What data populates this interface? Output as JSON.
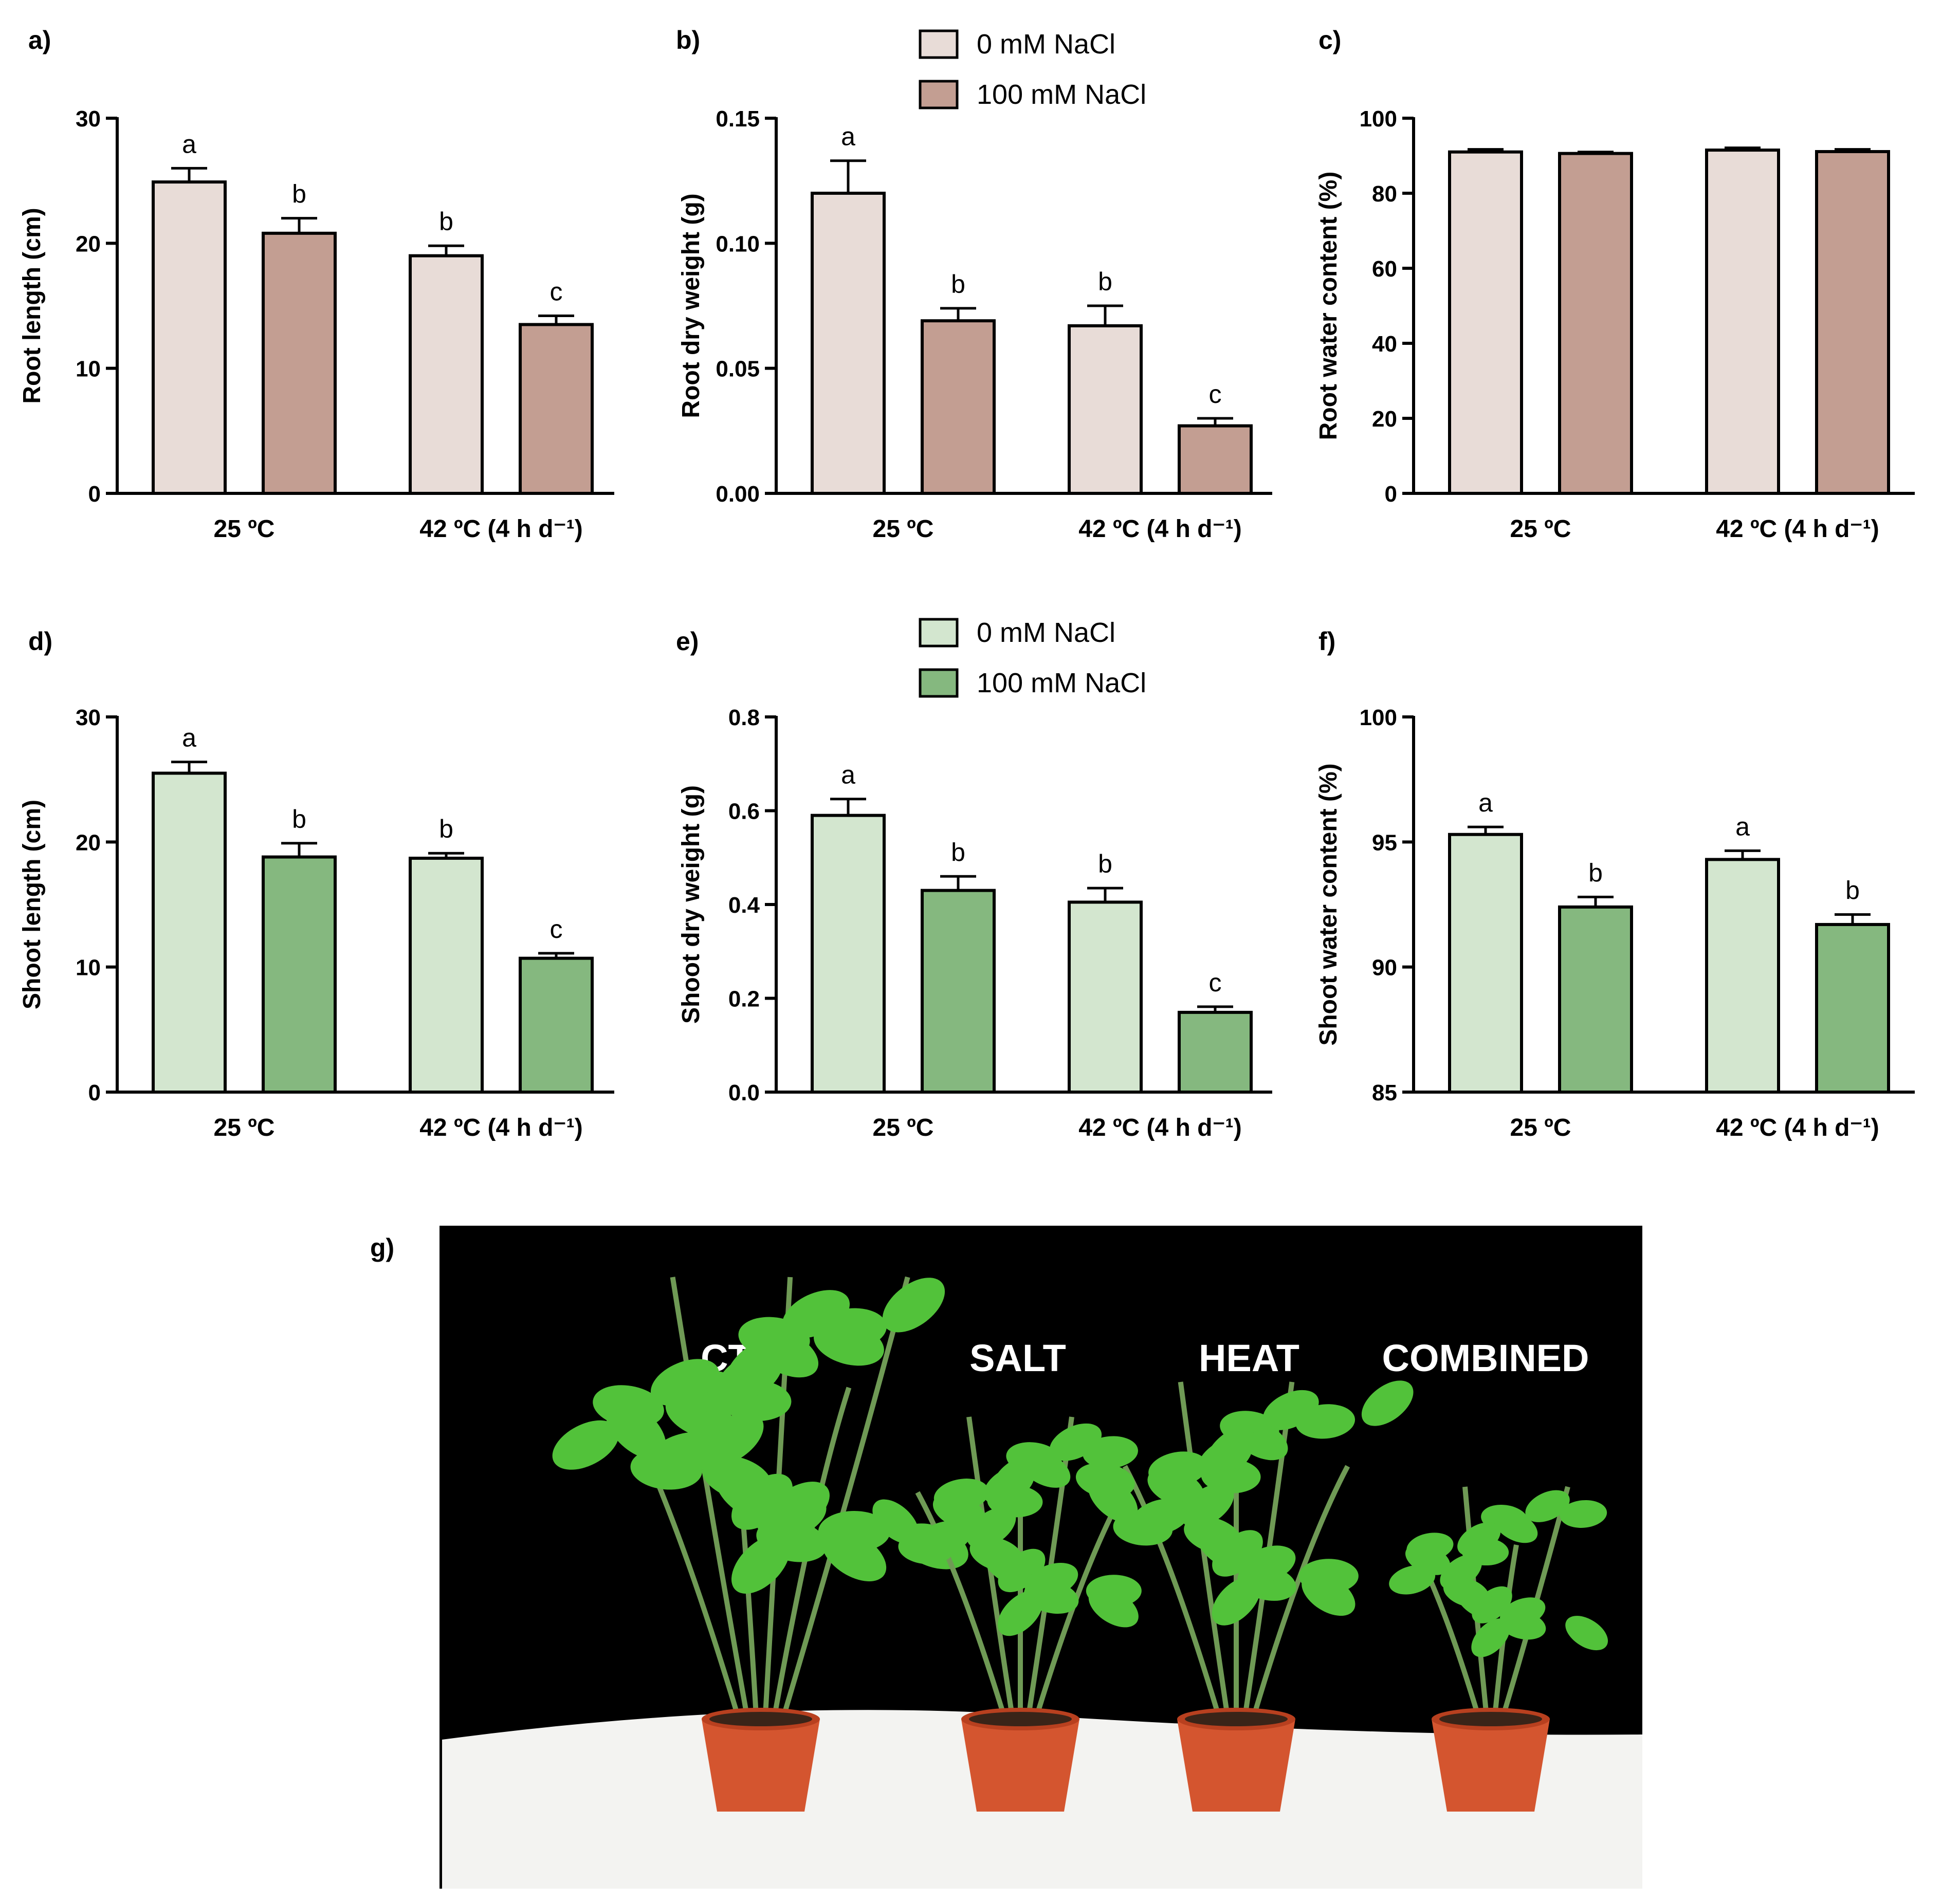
{
  "panel_labels": [
    "a)",
    "b)",
    "c)",
    "d)",
    "e)",
    "f)",
    "g)"
  ],
  "colors": {
    "root_control": "#e8dcd7",
    "root_salt": "#c39e92",
    "shoot_control": "#d3e6cf",
    "shoot_salt": "#85b87f",
    "axis": "#000000",
    "photo_background": "#000000",
    "photo_table": "#f3f3f1",
    "pot": "#d4552f",
    "leaf": "#52c23a",
    "stem": "#6f9a55"
  },
  "legends": [
    {
      "entries": [
        {
          "label": "0 mM NaCl",
          "color": "#e8dcd7"
        },
        {
          "label": "100 mM NaCl",
          "color": "#c39e92"
        }
      ]
    },
    {
      "entries": [
        {
          "label": "0 mM NaCl",
          "color": "#d3e6cf"
        },
        {
          "label": "100 mM NaCl",
          "color": "#85b87f"
        }
      ]
    }
  ],
  "chart_data": [
    {
      "panel": "a)",
      "type": "bar",
      "categories": [
        "25 ºC",
        "42 ºC (4 h d⁻¹)"
      ],
      "series": [
        {
          "name": "0 mM NaCl",
          "values": [
            24.9,
            19.0
          ],
          "errors": [
            1.1,
            0.8
          ],
          "letters": [
            "a",
            "b"
          ]
        },
        {
          "name": "100 mM NaCl",
          "values": [
            20.8,
            13.5
          ],
          "errors": [
            1.2,
            0.7
          ],
          "letters": [
            "b",
            "c"
          ]
        }
      ],
      "ylabel": "Root length (cm)",
      "ylim": [
        0,
        30
      ],
      "yticks": [
        "0",
        "10",
        "20",
        "30"
      ]
    },
    {
      "panel": "b)",
      "type": "bar",
      "categories": [
        "25 ºC",
        "42 ºC (4 h d⁻¹)"
      ],
      "series": [
        {
          "name": "0 mM NaCl",
          "values": [
            0.12,
            0.067
          ],
          "errors": [
            0.013,
            0.008
          ],
          "letters": [
            "a",
            "b"
          ]
        },
        {
          "name": "100 mM NaCl",
          "values": [
            0.069,
            0.027
          ],
          "errors": [
            0.005,
            0.003
          ],
          "letters": [
            "b",
            "c"
          ]
        }
      ],
      "ylabel": "Root dry weight (g)",
      "ylim": [
        0,
        0.15
      ],
      "yticks": [
        "0.00",
        "0.05",
        "0.10",
        "0.15"
      ]
    },
    {
      "panel": "c)",
      "type": "bar",
      "categories": [
        "25 ºC",
        "42 ºC (4 h d⁻¹)"
      ],
      "series": [
        {
          "name": "0 mM NaCl",
          "values": [
            91.0,
            91.5
          ],
          "errors": [
            0.7,
            0.6
          ],
          "letters": [
            "",
            ""
          ]
        },
        {
          "name": "100 mM NaCl",
          "values": [
            90.6,
            91.1
          ],
          "errors": [
            0.4,
            0.6
          ],
          "letters": [
            "",
            ""
          ]
        }
      ],
      "ylabel": "Root water content (%)",
      "ylim": [
        0,
        100
      ],
      "yticks": [
        "0",
        "20",
        "40",
        "60",
        "80",
        "100"
      ]
    },
    {
      "panel": "d)",
      "type": "bar",
      "categories": [
        "25 ºC",
        "42 ºC (4 h d⁻¹)"
      ],
      "series": [
        {
          "name": "0 mM NaCl",
          "values": [
            25.5,
            18.7
          ],
          "errors": [
            0.9,
            0.4
          ],
          "letters": [
            "a",
            "b"
          ]
        },
        {
          "name": "100 mM NaCl",
          "values": [
            18.8,
            10.7
          ],
          "errors": [
            1.1,
            0.4
          ],
          "letters": [
            "b",
            "c"
          ]
        }
      ],
      "ylabel": "Shoot length (cm)",
      "ylim": [
        0,
        30
      ],
      "yticks": [
        "0",
        "10",
        "20",
        "30"
      ]
    },
    {
      "panel": "e)",
      "type": "bar",
      "categories": [
        "25 ºC",
        "42 ºC (4 h d⁻¹)"
      ],
      "series": [
        {
          "name": "0 mM NaCl",
          "values": [
            0.59,
            0.405
          ],
          "errors": [
            0.035,
            0.03
          ],
          "letters": [
            "a",
            "b"
          ]
        },
        {
          "name": "100 mM NaCl",
          "values": [
            0.43,
            0.17
          ],
          "errors": [
            0.03,
            0.012
          ],
          "letters": [
            "b",
            "c"
          ]
        }
      ],
      "ylabel": "Shoot dry weight (g)",
      "ylim": [
        0,
        0.8
      ],
      "yticks": [
        "0.0",
        "0.2",
        "0.4",
        "0.6",
        "0.8"
      ]
    },
    {
      "panel": "f)",
      "type": "bar",
      "categories": [
        "25 ºC",
        "42 ºC (4 h d⁻¹)"
      ],
      "series": [
        {
          "name": "0 mM NaCl",
          "values": [
            95.3,
            94.3
          ],
          "errors": [
            0.3,
            0.35
          ],
          "letters": [
            "a",
            "a"
          ]
        },
        {
          "name": "100 mM NaCl",
          "values": [
            92.4,
            91.7
          ],
          "errors": [
            0.4,
            0.4
          ],
          "letters": [
            "b",
            "b"
          ]
        }
      ],
      "ylabel": "Shoot water content (%)",
      "ylim": [
        85,
        100
      ],
      "yticks": [
        "85",
        "90",
        "95",
        "100"
      ]
    }
  ],
  "photo": {
    "labels": [
      "CTL",
      "SALT",
      "HEAT",
      "COMBINED"
    ],
    "plant_sizes": [
      1.0,
      0.6,
      0.7,
      0.4
    ]
  }
}
